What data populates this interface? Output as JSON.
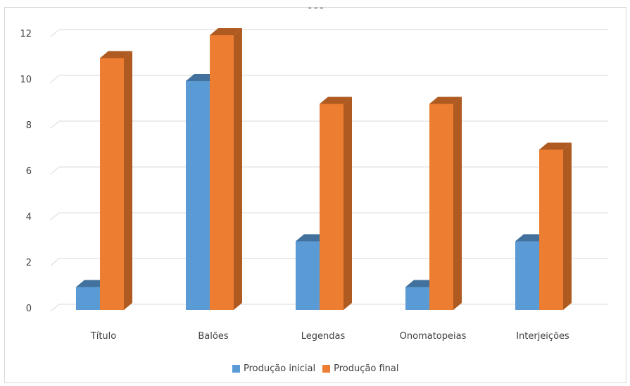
{
  "chart_data": {
    "type": "bar",
    "title": "",
    "xlabel": "",
    "ylabel": "",
    "categories": [
      "Título",
      "Balões",
      "Legendas",
      "Onomatopeias",
      "Interjeições"
    ],
    "series": [
      {
        "name": "Produção inicial",
        "values": [
          1,
          10,
          3,
          1,
          3
        ],
        "color": "#5b9bd5",
        "side_color": "#41719c"
      },
      {
        "name": "Produção final",
        "values": [
          11,
          12,
          9,
          9,
          7
        ],
        "color": "#ed7d31",
        "side_color": "#ae5a21"
      }
    ],
    "yticks": [
      0,
      2,
      4,
      6,
      8,
      10,
      12
    ],
    "ylim": [
      0,
      12
    ],
    "grid": true,
    "style_3d": true,
    "legend_position": "bottom"
  },
  "title_fragment": "...",
  "legend": {
    "items": [
      {
        "label": "Produção inicial",
        "color": "#5b9bd5"
      },
      {
        "label": "Produção final",
        "color": "#ed7d31"
      }
    ]
  }
}
